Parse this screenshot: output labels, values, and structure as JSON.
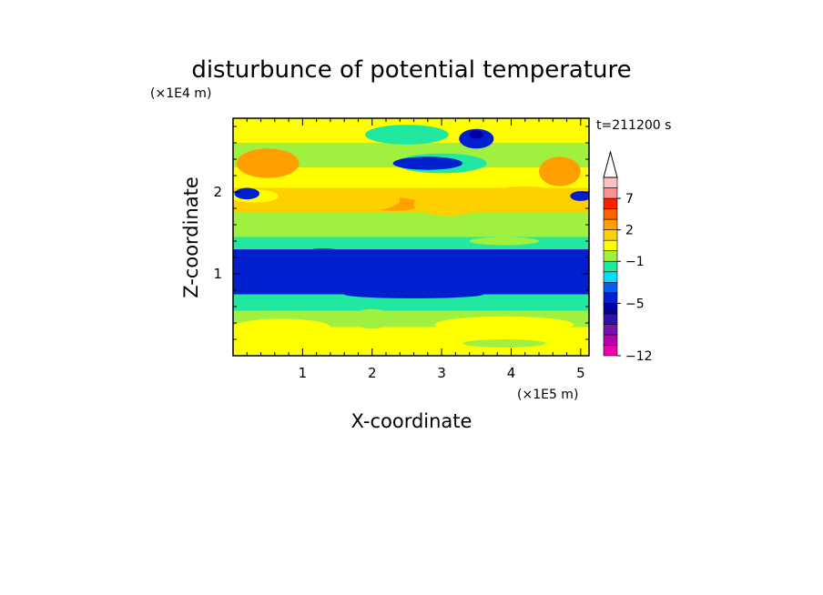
{
  "chart_data": {
    "type": "heatmap",
    "title": "disturbunce of potential temperature",
    "xlabel": "X-coordinate",
    "ylabel": "Z-coordinate",
    "x_unit": "(×1E5 m)",
    "y_unit": "(×1E4 m)",
    "time_label": "t=211200 s",
    "xlim": [
      0,
      5.12
    ],
    "ylim": [
      0,
      2.9
    ],
    "x_ticks": [
      {
        "value": 1,
        "label": "1"
      },
      {
        "value": 2,
        "label": "2"
      },
      {
        "value": 3,
        "label": "3"
      },
      {
        "value": 4,
        "label": "4"
      },
      {
        "value": 5,
        "label": "5"
      }
    ],
    "y_ticks": [
      {
        "value": 1,
        "label": "1"
      },
      {
        "value": 2,
        "label": "2"
      }
    ],
    "colorbar": {
      "levels": [
        -12,
        -10,
        -8,
        -7,
        -6,
        -5,
        -4,
        -3,
        -2,
        -1,
        0,
        1,
        2,
        3,
        5,
        7,
        9,
        11
      ],
      "colors": [
        "#ee00b0",
        "#b800a8",
        "#7a10b0",
        "#3010a8",
        "#0000a0",
        "#0020d0",
        "#0060f0",
        "#00e0ff",
        "#20e8a0",
        "#a0f040",
        "#ffff00",
        "#ffd000",
        "#ffa000",
        "#ff6000",
        "#ff2000",
        "#ff9090",
        "#ffc0c0"
      ],
      "labels": [
        {
          "value": -12,
          "label": "−12"
        },
        {
          "value": -5,
          "label": "−5"
        },
        {
          "value": -1,
          "label": "−1"
        },
        {
          "value": 2,
          "label": "2"
        },
        {
          "value": 7,
          "label": "7"
        }
      ],
      "extend": "max"
    },
    "bands": [
      {
        "z_bottom": 0.0,
        "z_top": 0.1,
        "value": 0.5
      },
      {
        "z_bottom": 0.1,
        "z_top": 0.35,
        "value": 0.6
      },
      {
        "z_bottom": 0.35,
        "z_top": 0.55,
        "value": -0.5
      },
      {
        "z_bottom": 0.55,
        "z_top": 0.75,
        "value": -1.5
      },
      {
        "z_bottom": 0.75,
        "z_top": 1.3,
        "value": -4.5
      },
      {
        "z_bottom": 1.3,
        "z_top": 1.45,
        "value": -1.5
      },
      {
        "z_bottom": 1.45,
        "z_top": 1.75,
        "value": -0.5
      },
      {
        "z_bottom": 1.75,
        "z_top": 2.05,
        "value": 1.5
      },
      {
        "z_bottom": 2.05,
        "z_top": 2.3,
        "value": 0.5
      },
      {
        "z_bottom": 2.3,
        "z_top": 2.6,
        "value": -0.5
      },
      {
        "z_bottom": 2.6,
        "z_top": 2.9,
        "value": 0.6
      }
    ],
    "features": [
      {
        "x": 0.5,
        "z": 2.35,
        "rx": 0.45,
        "rz": 0.18,
        "value": 2.5
      },
      {
        "x": 0.3,
        "z": 1.95,
        "rx": 0.35,
        "rz": 0.08,
        "value": 0.5
      },
      {
        "x": 0.2,
        "z": 1.98,
        "rx": 0.18,
        "rz": 0.07,
        "value": -4.5
      },
      {
        "x": 2.3,
        "z": 1.85,
        "rx": 0.4,
        "rz": 0.08,
        "value": 2.5
      },
      {
        "x": 1.8,
        "z": 1.9,
        "rx": 0.6,
        "rz": 0.14,
        "value": 1.5
      },
      {
        "x": 3.1,
        "z": 1.85,
        "rx": 0.5,
        "rz": 0.14,
        "value": 1.5
      },
      {
        "x": 4.7,
        "z": 2.25,
        "rx": 0.3,
        "rz": 0.18,
        "value": 2.5
      },
      {
        "x": 4.2,
        "z": 1.95,
        "rx": 0.5,
        "rz": 0.12,
        "value": 1.5
      },
      {
        "x": 3.0,
        "z": 2.35,
        "rx": 0.65,
        "rz": 0.12,
        "value": -1.5
      },
      {
        "x": 2.8,
        "z": 2.35,
        "rx": 0.5,
        "rz": 0.08,
        "value": -4.5
      },
      {
        "x": 3.5,
        "z": 2.65,
        "rx": 0.25,
        "rz": 0.12,
        "value": -4.5
      },
      {
        "x": 3.5,
        "z": 2.7,
        "rx": 0.1,
        "rz": 0.05,
        "value": -5.5
      },
      {
        "x": 2.5,
        "z": 2.7,
        "rx": 0.6,
        "rz": 0.12,
        "value": -1.5
      },
      {
        "x": 5.0,
        "z": 1.95,
        "rx": 0.15,
        "rz": 0.06,
        "value": -4.5
      },
      {
        "x": 1.3,
        "z": 1.25,
        "rx": 0.3,
        "rz": 0.06,
        "value": -4.5
      },
      {
        "x": 3.9,
        "z": 1.4,
        "rx": 0.5,
        "rz": 0.05,
        "value": -0.5
      },
      {
        "x": 2.6,
        "z": 0.75,
        "rx": 1.0,
        "rz": 0.05,
        "value": -4.5
      },
      {
        "x": 2.0,
        "z": 0.45,
        "rx": 0.3,
        "rz": 0.12,
        "value": -0.5
      },
      {
        "x": 0.7,
        "z": 0.35,
        "rx": 0.7,
        "rz": 0.1,
        "value": 0.5
      },
      {
        "x": 3.9,
        "z": 0.38,
        "rx": 1.0,
        "rz": 0.1,
        "value": 0.5
      },
      {
        "x": 3.9,
        "z": 0.15,
        "rx": 0.6,
        "rz": 0.05,
        "value": -0.5
      }
    ]
  }
}
